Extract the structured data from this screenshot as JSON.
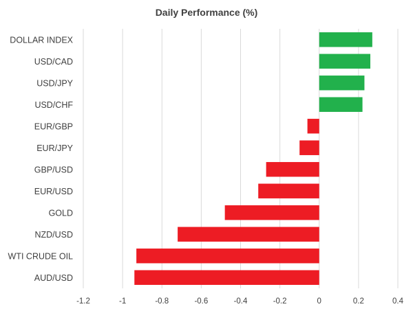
{
  "chart_data": {
    "type": "bar",
    "orientation": "horizontal",
    "title": "Daily Performance (%)",
    "xlabel": "",
    "ylabel": "",
    "categories": [
      "DOLLAR INDEX",
      "USD/CAD",
      "USD/JPY",
      "USD/CHF",
      "EUR/GBP",
      "EUR/JPY",
      "GBP/USD",
      "EUR/USD",
      "GOLD",
      "NZD/USD",
      "WTI CRUDE OIL",
      "AUD/USD"
    ],
    "values": [
      0.27,
      0.26,
      0.23,
      0.22,
      -0.06,
      -0.1,
      -0.27,
      -0.31,
      -0.48,
      -0.72,
      -0.93,
      -0.94
    ],
    "xlim": [
      -1.2,
      0.4
    ],
    "xticks": [
      "-1.2",
      "-1",
      "-0.8",
      "-0.6",
      "-0.4",
      "-0.2",
      "0",
      "0.2",
      "0.4"
    ],
    "grid": "vertical",
    "legend": "none",
    "colors": {
      "positive": "#22b14c",
      "negative": "#ed1c24",
      "grid": "#d9d9d9",
      "text": "#404040"
    }
  }
}
